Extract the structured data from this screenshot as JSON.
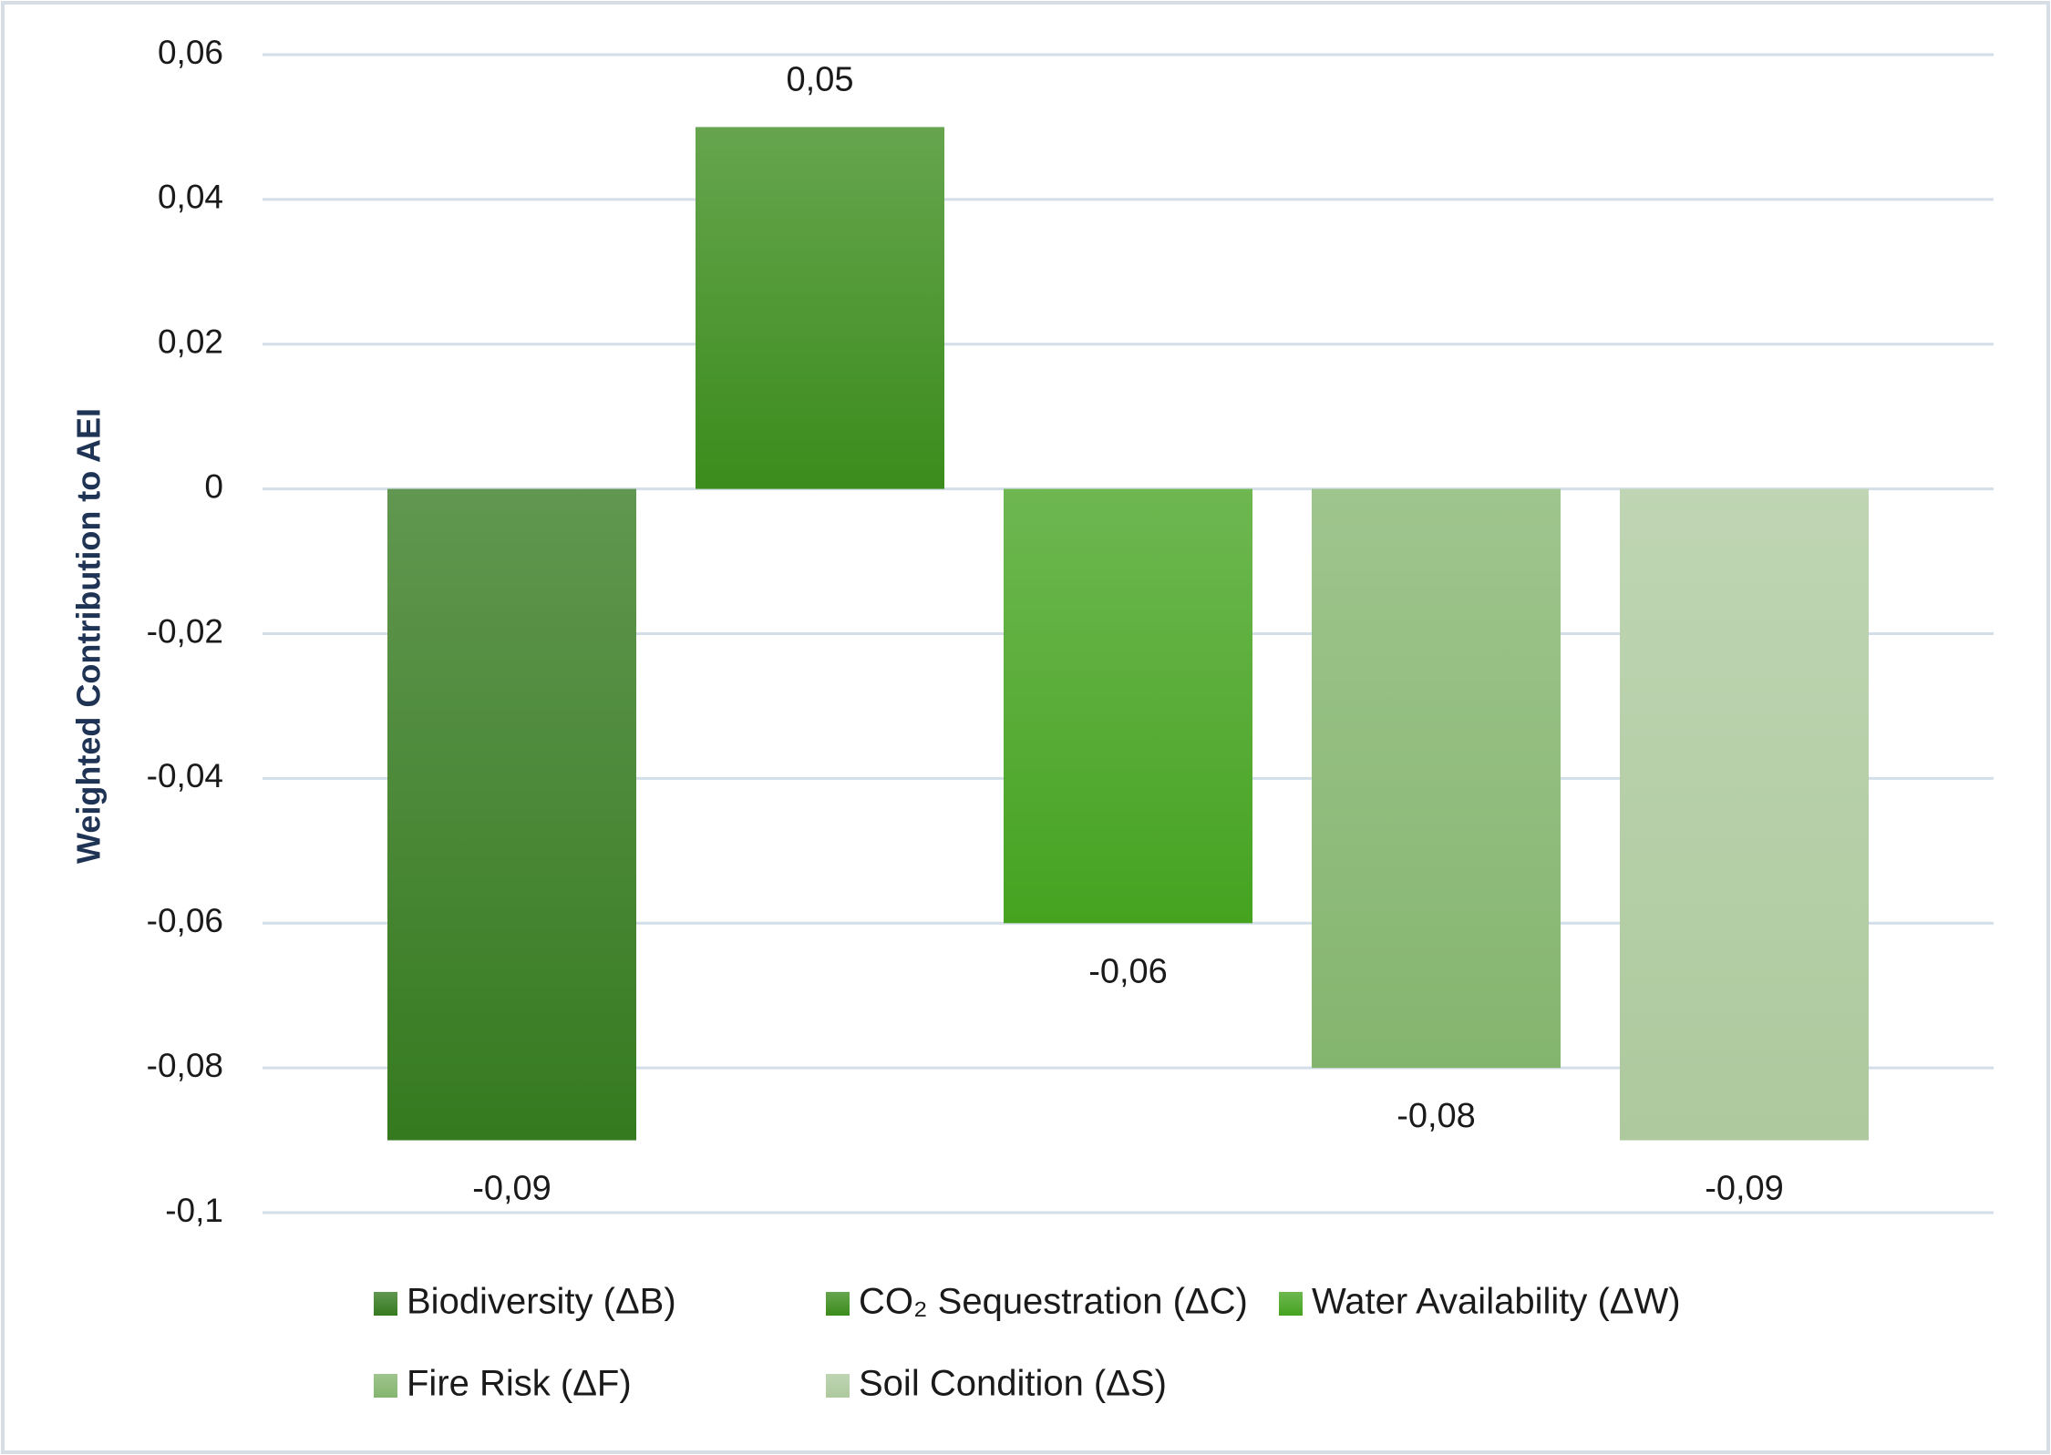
{
  "chart_data": {
    "type": "bar",
    "y_label": "Weighted Contribution to AEI",
    "categories": [
      null
    ],
    "series": [
      {
        "name": "Biodiversity (ΔB)",
        "color": "#357a1f",
        "values": [
          -0.09
        ],
        "value_labels": [
          "-0,09"
        ]
      },
      {
        "name": "CO₂ Sequestration (ΔC)",
        "color": "#3b8c1c",
        "values": [
          0.05
        ],
        "value_labels": [
          "0,05"
        ]
      },
      {
        "name": "Water Availability (ΔW)",
        "color": "#45a320",
        "values": [
          -0.06
        ],
        "value_labels": [
          "-0,06"
        ]
      },
      {
        "name": "Fire Risk (ΔF)",
        "color": "#84b56e",
        "values": [
          -0.08
        ],
        "value_labels": [
          "-0,08"
        ]
      },
      {
        "name": "Soil Condition (ΔS)",
        "color": "#adc99d",
        "values": [
          -0.09
        ],
        "value_labels": [
          "-0,09"
        ]
      }
    ],
    "ylim": [
      -0.1,
      0.06
    ],
    "yticks": [
      {
        "value": 0.06,
        "label": "0,06"
      },
      {
        "value": 0.04,
        "label": "0,04"
      },
      {
        "value": 0.02,
        "label": "0,02"
      },
      0,
      {
        "value": -0.02,
        "label": "-0,02"
      },
      {
        "value": -0.04,
        "label": "-0,04"
      },
      {
        "value": -0.06,
        "label": "-0,06"
      },
      {
        "value": -0.08,
        "label": "-0,08"
      },
      {
        "value": -0.1,
        "label": "-0,1"
      }
    ],
    "grid": true,
    "legend": "bottom"
  }
}
